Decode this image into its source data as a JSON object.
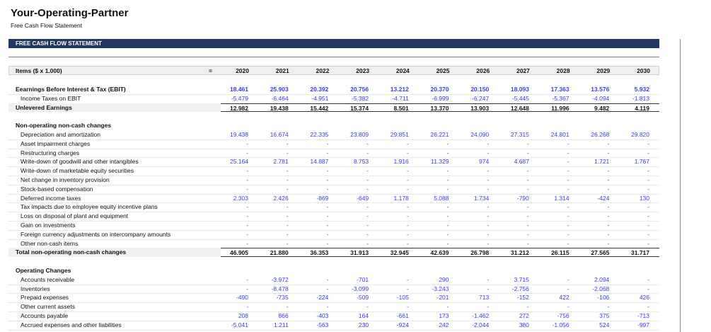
{
  "app": {
    "title": "Your-Operating-Partner",
    "subtitle": "Free Cash Flow Statement"
  },
  "banner": "FREE CASH FLOW STATEMENT",
  "colors": {
    "banner": "#203864",
    "input_value": "#3a3af0"
  },
  "header": {
    "items_label": "Items ($ x 1.000)",
    "eq": "=",
    "years": [
      "2020",
      "2021",
      "2022",
      "2023",
      "2024",
      "2025",
      "2026",
      "2027",
      "2028",
      "2029",
      "2030"
    ]
  },
  "rows": [
    {
      "type": "blank"
    },
    {
      "type": "bold",
      "label": "Eearnings Before Interest & Tax (EBIT)",
      "values": [
        "18.461",
        "25.903",
        "20.392",
        "20.756",
        "13.212",
        "20.370",
        "20.150",
        "18.093",
        "17.363",
        "13.576",
        "5.932"
      ]
    },
    {
      "type": "sub",
      "label": "Income Taxes on EBIT",
      "values": [
        "-5.479",
        "-6.464",
        "-4.951",
        "-5.382",
        "-4.711",
        "-6.999",
        "-6.247",
        "-5.445",
        "-5.367",
        "-4.094",
        "-1.813"
      ]
    },
    {
      "type": "total",
      "label": "Unlevered Earnings",
      "values": [
        "12.982",
        "19.438",
        "15.442",
        "15.374",
        "8.501",
        "13.370",
        "13.903",
        "12.648",
        "11.996",
        "9.482",
        "4.119"
      ]
    },
    {
      "type": "blank"
    },
    {
      "type": "section",
      "label": "Non-operating non-cash changes"
    },
    {
      "type": "sub",
      "label": "Depreciation and amortization",
      "values": [
        "19.438",
        "16.674",
        "22.335",
        "23.809",
        "29.851",
        "26.221",
        "24.090",
        "27.315",
        "24.801",
        "26.268",
        "29.820"
      ]
    },
    {
      "type": "sub",
      "label": "Asset impairment charges",
      "values": [
        "-",
        "-",
        "-",
        "-",
        "-",
        "-",
        "-",
        "-",
        "-",
        "-",
        "-"
      ]
    },
    {
      "type": "sub",
      "label": "Restructuring charges",
      "values": [
        "-",
        "-",
        "-",
        "-",
        "-",
        "-",
        "-",
        "-",
        "-",
        "-",
        "-"
      ]
    },
    {
      "type": "sub",
      "label": "Write-down of goodwill and other intangibles",
      "values": [
        "25.164",
        "2.781",
        "14.887",
        "8.753",
        "1.916",
        "11.329",
        "974",
        "4.687",
        "-",
        "1.721",
        "1.767"
      ]
    },
    {
      "type": "sub",
      "label": "Write-down of marketable equity securities",
      "values": [
        "-",
        "-",
        "-",
        "-",
        "-",
        "-",
        "-",
        "-",
        "-",
        "-",
        "-"
      ]
    },
    {
      "type": "sub",
      "label": "Net change in inventory provision",
      "values": [
        "-",
        "-",
        "-",
        "-",
        "-",
        "-",
        "-",
        "-",
        "-",
        "-",
        "-"
      ]
    },
    {
      "type": "sub",
      "label": "Stock-based compensation",
      "values": [
        "-",
        "-",
        "-",
        "-",
        "-",
        "-",
        "-",
        "-",
        "-",
        "-",
        "-"
      ]
    },
    {
      "type": "sub",
      "label": "Deferred income taxes",
      "values": [
        "2.303",
        "2.426",
        "-869",
        "-649",
        "1.178",
        "5.088",
        "1.734",
        "-790",
        "1.314",
        "-424",
        "130"
      ]
    },
    {
      "type": "sub",
      "label": "Tax impacts due to employee equity incentive plans",
      "values": [
        "-",
        "-",
        "-",
        "-",
        "-",
        "-",
        "-",
        "-",
        "-",
        "-",
        "-"
      ]
    },
    {
      "type": "sub",
      "label": "Loss on disposal of plant and equipment",
      "values": [
        "-",
        "-",
        "-",
        "-",
        "-",
        "-",
        "-",
        "-",
        "-",
        "-",
        "-"
      ]
    },
    {
      "type": "sub",
      "label": "Gain on investments",
      "values": [
        "-",
        "-",
        "-",
        "-",
        "-",
        "-",
        "-",
        "-",
        "-",
        "-",
        "-"
      ]
    },
    {
      "type": "sub",
      "label": "Foreign currency adjustments on intercompany amounts",
      "values": [
        "-",
        "-",
        "-",
        "-",
        "-",
        "-",
        "-",
        "-",
        "-",
        "-",
        "-"
      ]
    },
    {
      "type": "sub",
      "label": "Other non-cash items",
      "values": [
        "-",
        "-",
        "-",
        "-",
        "-",
        "-",
        "-",
        "-",
        "-",
        "-",
        "-"
      ]
    },
    {
      "type": "total",
      "label": "Total non-operating non-cash changes",
      "values": [
        "46.905",
        "21.880",
        "36.353",
        "31.913",
        "32.945",
        "42.639",
        "26.798",
        "31.212",
        "26.115",
        "27.565",
        "31.717"
      ]
    },
    {
      "type": "blank"
    },
    {
      "type": "section",
      "label": "Operating Changes"
    },
    {
      "type": "sub",
      "label": "Accounts receivable",
      "values": [
        "-",
        "-3.972",
        "-",
        "-701",
        "-",
        "290",
        "-",
        "3.715",
        "-",
        "2.094",
        "-"
      ]
    },
    {
      "type": "sub",
      "label": "Inventories",
      "values": [
        "-",
        "-8.478",
        "-",
        "-3.099",
        "-",
        "-3.243",
        "-",
        "-2.756",
        "-",
        "-2.068",
        "-"
      ]
    },
    {
      "type": "sub",
      "label": "Prepaid expenses",
      "values": [
        "-490",
        "-735",
        "-224",
        "-509",
        "-105",
        "-201",
        "713",
        "-152",
        "422",
        "-106",
        "426"
      ]
    },
    {
      "type": "sub",
      "label": "Other current assets",
      "values": [
        "-",
        "-",
        "-",
        "-",
        "-",
        "-",
        "-",
        "-",
        "-",
        "-",
        "-"
      ]
    },
    {
      "type": "sub",
      "label": "Accounts payable",
      "values": [
        "208",
        "866",
        "-403",
        "164",
        "-661",
        "173",
        "-1.462",
        "272",
        "-756",
        "375",
        "-713"
      ]
    },
    {
      "type": "sub",
      "label": "Accrued expenses and other liabilities",
      "values": [
        "-5.041",
        "1.211",
        "-563",
        "230",
        "-924",
        "242",
        "-2.044",
        "380",
        "-1.056",
        "524",
        "-997"
      ]
    }
  ]
}
